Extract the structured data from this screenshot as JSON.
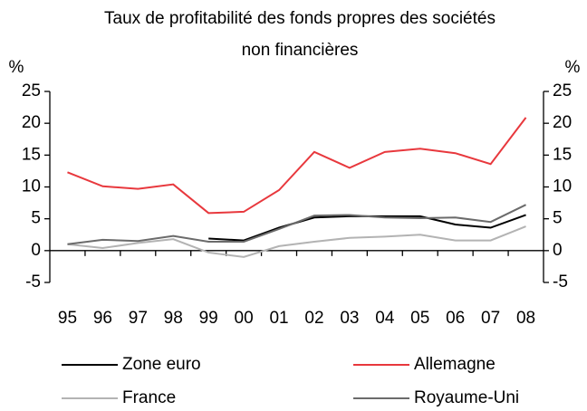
{
  "chart_data": {
    "type": "line",
    "title": [
      "Taux de profitabilité des fonds propres des sociétés",
      "non financières"
    ],
    "y_unit": "%",
    "y2_unit": "%",
    "categories": [
      "95",
      "96",
      "97",
      "98",
      "99",
      "00",
      "01",
      "02",
      "03",
      "04",
      "05",
      "06",
      "07",
      "08"
    ],
    "series": [
      {
        "name": "Zone euro",
        "color": "#000000",
        "values": [
          null,
          null,
          null,
          null,
          1.9,
          1.6,
          3.6,
          5.2,
          5.4,
          5.4,
          5.4,
          4.1,
          3.6,
          5.6
        ]
      },
      {
        "name": "Allemagne",
        "color": "#e8383d",
        "values": [
          12.3,
          10.1,
          9.7,
          10.4,
          5.9,
          6.1,
          9.5,
          15.5,
          13.0,
          15.5,
          16.0,
          15.3,
          13.6,
          20.9
        ]
      },
      {
        "name": "France",
        "color": "#b3b3b3",
        "values": [
          1.0,
          0.4,
          1.2,
          1.8,
          -0.3,
          -1.0,
          0.7,
          1.4,
          2.0,
          2.2,
          2.5,
          1.6,
          1.6,
          3.8
        ]
      },
      {
        "name": "Royaume-Uni",
        "color": "#6b6b6b",
        "values": [
          1.0,
          1.7,
          1.5,
          2.3,
          1.4,
          1.4,
          3.4,
          5.5,
          5.6,
          5.2,
          5.1,
          5.2,
          4.5,
          7.2
        ]
      }
    ],
    "ylim": [
      -5,
      25
    ],
    "yticks": [
      -5,
      0,
      5,
      10,
      15,
      20,
      25
    ],
    "y2lim": [
      -5,
      25
    ],
    "y2ticks": [
      -5,
      0,
      5,
      10,
      15,
      20,
      25
    ]
  }
}
